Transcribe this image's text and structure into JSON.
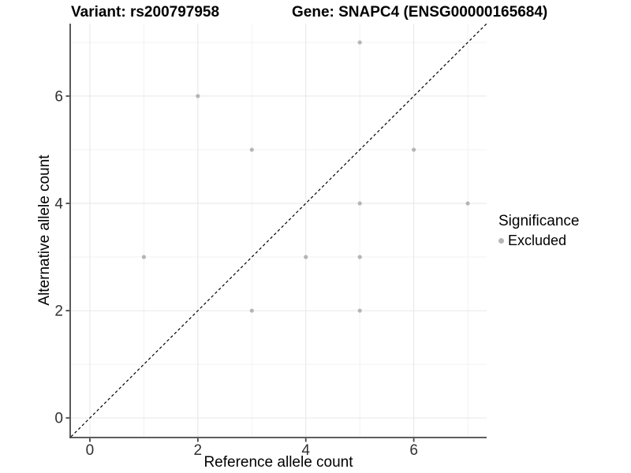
{
  "chart_data": {
    "type": "scatter",
    "titles": {
      "left": "Variant: rs200797958",
      "right": "Gene: SNAPC4 (ENSG00000165684)"
    },
    "xlabel": "Reference allele count",
    "ylabel": "Alternative allele count",
    "xlim": [
      -0.35,
      7.35
    ],
    "ylim": [
      -0.35,
      7.35
    ],
    "x_ticks": [
      0,
      2,
      4,
      6
    ],
    "y_ticks": [
      0,
      2,
      4,
      6
    ],
    "x_minor": [
      1,
      3,
      5,
      7
    ],
    "y_minor": [
      1,
      3,
      5,
      7
    ],
    "grid": "on",
    "legend_position": "right",
    "series": [
      {
        "name": "Excluded",
        "color": "#b5b5b5",
        "points": [
          [
            1,
            3
          ],
          [
            2,
            6
          ],
          [
            3,
            2
          ],
          [
            3,
            5
          ],
          [
            4,
            3
          ],
          [
            5,
            2
          ],
          [
            5,
            3
          ],
          [
            5,
            4
          ],
          [
            5,
            7
          ],
          [
            6,
            5
          ],
          [
            7,
            4
          ]
        ]
      }
    ],
    "reference_line": {
      "type": "identity",
      "equation": "y = x",
      "style": "dashed",
      "color": "#000000"
    }
  },
  "legend": {
    "title": "Significance",
    "items": [
      {
        "label": "Excluded",
        "color": "#b5b5b5"
      }
    ]
  },
  "colors": {
    "background": "#ffffff",
    "grid_major": "#e6e6e6",
    "grid_minor": "#f2f2f2",
    "axis_line": "#474747",
    "tick_label": "#303030",
    "point": "#b5b5b5",
    "identity_line": "#000000"
  }
}
